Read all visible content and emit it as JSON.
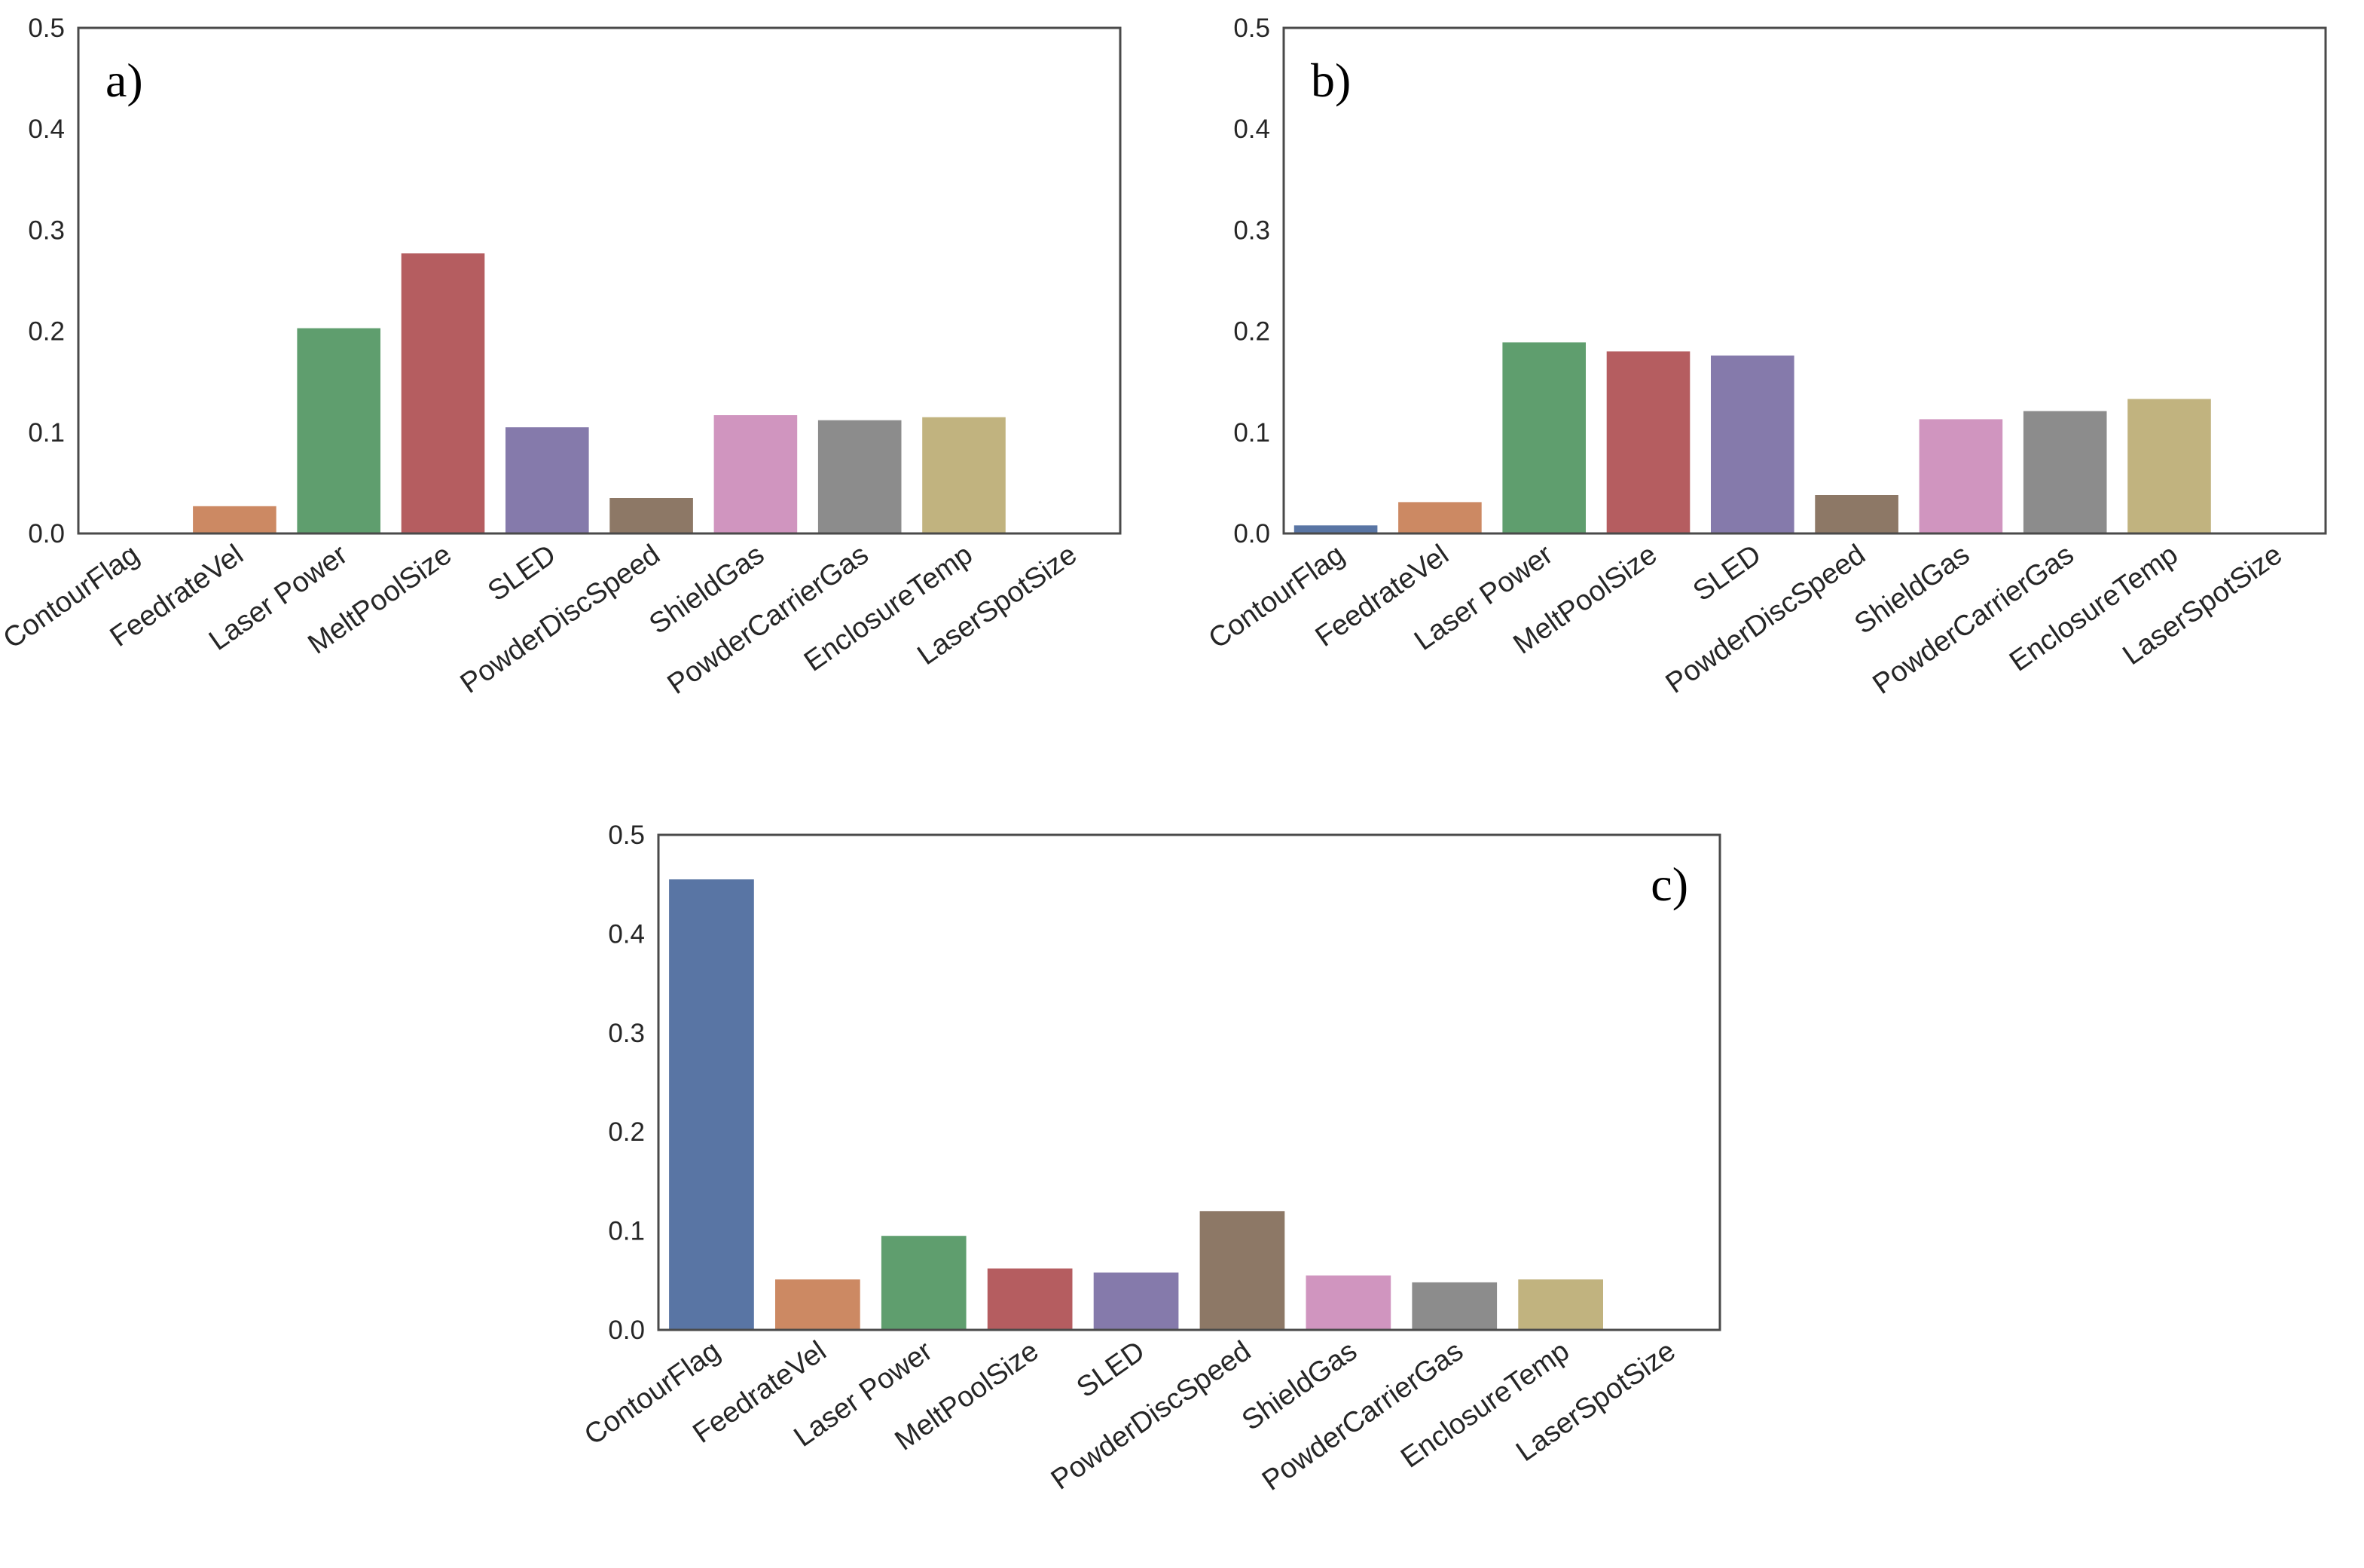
{
  "chart_data": [
    {
      "type": "bar",
      "panel_label": "a)",
      "categories": [
        "ContourFlag",
        "FeedrateVel",
        "Laser Power",
        "MeltPoolSize",
        "SLED",
        "PowderDiscSpeed",
        "ShieldGas",
        "PowderCarrierGas",
        "EnclosureTemp",
        "LaserSpotSize"
      ],
      "values": [
        0.0,
        0.027,
        0.203,
        0.277,
        0.105,
        0.035,
        0.117,
        0.112,
        0.115,
        0.0
      ],
      "ylim": [
        0.0,
        0.5
      ],
      "yticks": [
        "0.0",
        "0.1",
        "0.2",
        "0.3",
        "0.4",
        "0.5"
      ],
      "title": "",
      "xlabel": "",
      "ylabel": ""
    },
    {
      "type": "bar",
      "panel_label": "b)",
      "categories": [
        "ContourFlag",
        "FeedrateVel",
        "Laser Power",
        "MeltPoolSize",
        "SLED",
        "PowderDiscSpeed",
        "ShieldGas",
        "PowderCarrierGas",
        "EnclosureTemp",
        "LaserSpotSize"
      ],
      "values": [
        0.008,
        0.031,
        0.189,
        0.18,
        0.176,
        0.038,
        0.113,
        0.121,
        0.133,
        0.0
      ],
      "ylim": [
        0.0,
        0.5
      ],
      "yticks": [
        "0.0",
        "0.1",
        "0.2",
        "0.3",
        "0.4",
        "0.5"
      ],
      "title": "",
      "xlabel": "",
      "ylabel": ""
    },
    {
      "type": "bar",
      "panel_label": "c)",
      "categories": [
        "ContourFlag",
        "FeedrateVel",
        "Laser Power",
        "MeltPoolSize",
        "SLED",
        "PowderDiscSpeed",
        "ShieldGas",
        "PowderCarrierGas",
        "EnclosureTemp",
        "LaserSpotSize"
      ],
      "values": [
        0.455,
        0.051,
        0.095,
        0.062,
        0.058,
        0.12,
        0.055,
        0.048,
        0.051,
        0.0
      ],
      "ylim": [
        0.0,
        0.5
      ],
      "yticks": [
        "0.0",
        "0.1",
        "0.2",
        "0.3",
        "0.4",
        "0.5"
      ],
      "title": "",
      "xlabel": "",
      "ylabel": ""
    }
  ],
  "colors": [
    "#5975a4",
    "#cc8963",
    "#5f9e6e",
    "#b55d60",
    "#857aab",
    "#8d7866",
    "#d095bf",
    "#8c8c8c",
    "#c1b37f",
    "#71aec0"
  ],
  "frame_color": "#4a4a4a"
}
